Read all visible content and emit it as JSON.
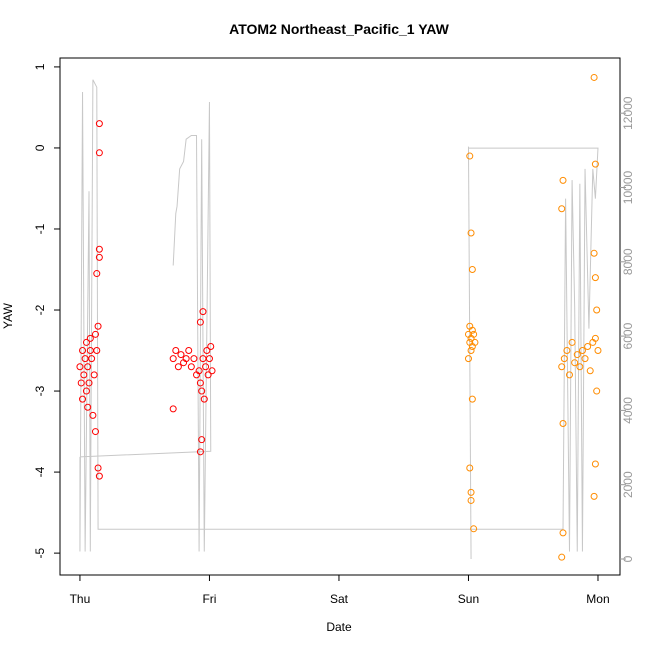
{
  "chart_data": {
    "type": "scatter",
    "title": "ATOM2 Northeast_Pacific_1 YAW",
    "x_label": "Date",
    "y_label": "YAW",
    "xlim": [
      -0.154,
      4.17
    ],
    "xticks": [
      {
        "value": 0,
        "label": "Thu"
      },
      {
        "value": 1,
        "label": "Fri"
      },
      {
        "value": 2,
        "label": "Sat"
      },
      {
        "value": 3,
        "label": "Sun"
      },
      {
        "value": 4,
        "label": "Mon"
      }
    ],
    "ylim": [
      -5.27,
      1.11
    ],
    "yticks": [
      -5,
      -4,
      -3,
      -2,
      -1,
      0,
      1
    ],
    "y2lim": [
      -431,
      13486
    ],
    "y2ticks": [
      0,
      2000,
      4000,
      6000,
      8000,
      10000,
      12000
    ],
    "series": [
      {
        "color": "#ff0000",
        "type": "scatter",
        "x": [
          0.0,
          0.01,
          0.02,
          0.02,
          0.03,
          0.04,
          0.05,
          0.05,
          0.06,
          0.07,
          0.08,
          0.09,
          0.1,
          0.11,
          0.12,
          0.13,
          0.14,
          0.15,
          0.15,
          0.15,
          0.15,
          0.15,
          0.14,
          0.13,
          0.12,
          0.06,
          0.08,
          0.72,
          0.74,
          0.76,
          0.78,
          0.8,
          0.82,
          0.84,
          0.86,
          0.88,
          0.9,
          0.92,
          0.93,
          0.94,
          0.95,
          0.96,
          0.97,
          0.98,
          0.99,
          1.0,
          1.01,
          1.02,
          0.93,
          0.94,
          0.95,
          0.72,
          0.93
        ],
        "values": [
          -2.7,
          -2.9,
          -2.5,
          -3.1,
          -2.8,
          -2.6,
          -3.0,
          -2.4,
          -2.7,
          -2.9,
          -2.5,
          -2.6,
          -3.3,
          -2.8,
          -2.3,
          -2.5,
          -2.2,
          0.3,
          -0.06,
          -1.25,
          -1.35,
          -4.05,
          -3.95,
          -1.55,
          -3.5,
          -3.2,
          -2.35,
          -2.6,
          -2.5,
          -2.7,
          -2.55,
          -2.65,
          -2.6,
          -2.5,
          -2.7,
          -2.6,
          -2.8,
          -2.75,
          -2.9,
          -3.0,
          -2.6,
          -3.1,
          -2.7,
          -2.5,
          -2.8,
          -2.6,
          -2.45,
          -2.75,
          -3.75,
          -3.6,
          -2.02,
          -3.22,
          -2.15
        ]
      },
      {
        "color": "#ff8c00",
        "type": "scatter",
        "x": [
          3.0,
          3.01,
          3.01,
          3.02,
          3.02,
          3.03,
          3.03,
          3.04,
          3.05,
          3.0,
          3.01,
          3.02,
          3.03,
          3.04,
          3.02,
          3.01,
          3.03,
          3.02,
          3.72,
          3.74,
          3.76,
          3.78,
          3.8,
          3.82,
          3.84,
          3.86,
          3.88,
          3.9,
          3.92,
          3.94,
          3.96,
          3.98,
          4.0,
          3.73,
          3.72,
          3.73,
          3.72,
          3.73,
          3.97,
          3.98,
          3.97,
          3.98,
          3.97,
          3.98,
          3.99,
          3.99
        ],
        "values": [
          -2.3,
          -2.4,
          -2.2,
          -2.5,
          -2.35,
          -2.25,
          -2.45,
          -2.3,
          -2.4,
          -2.6,
          -0.1,
          -1.05,
          -1.5,
          -4.7,
          -4.35,
          -3.95,
          -3.1,
          -4.25,
          -2.7,
          -2.6,
          -2.5,
          -2.8,
          -2.4,
          -2.65,
          -2.55,
          -2.7,
          -2.5,
          -2.6,
          -2.45,
          -2.75,
          -2.4,
          -2.35,
          -2.5,
          -0.4,
          -0.75,
          -4.75,
          -5.05,
          -3.4,
          0.87,
          -0.2,
          -4.3,
          -3.9,
          -1.3,
          -1.6,
          -2.0,
          -3.0
        ]
      },
      {
        "color": "#c8c8c8",
        "type": "line",
        "axis": "y2",
        "x": [
          0.0,
          0.0,
          0.02,
          0.04,
          0.07,
          0.08,
          0.1,
          0.13,
          0.14,
          3.73,
          3.75,
          3.78,
          3.8,
          3.82,
          3.84,
          3.86,
          3.88,
          3.9,
          3.93,
          3.96,
          3.98,
          4.0,
          3.0,
          3.0,
          3.02,
          0.0,
          0.0,
          1.01,
          1.0,
          0.96,
          0.94,
          0.92,
          0.9,
          0.86,
          0.82,
          0.8,
          0.77,
          0.75,
          0.74,
          0.72
        ],
        "values": [
          2750,
          200,
          12570,
          200,
          9900,
          200,
          12900,
          12700,
          800,
          800,
          9700,
          200,
          10200,
          6800,
          200,
          10100,
          200,
          10500,
          6200,
          10500,
          9700,
          11060,
          11060,
          11100,
          0,
          null,
          2750,
          2900,
          12300,
          200,
          11300,
          200,
          11400,
          11400,
          11300,
          10700,
          10500,
          9500,
          9300,
          7900
        ]
      }
    ]
  }
}
